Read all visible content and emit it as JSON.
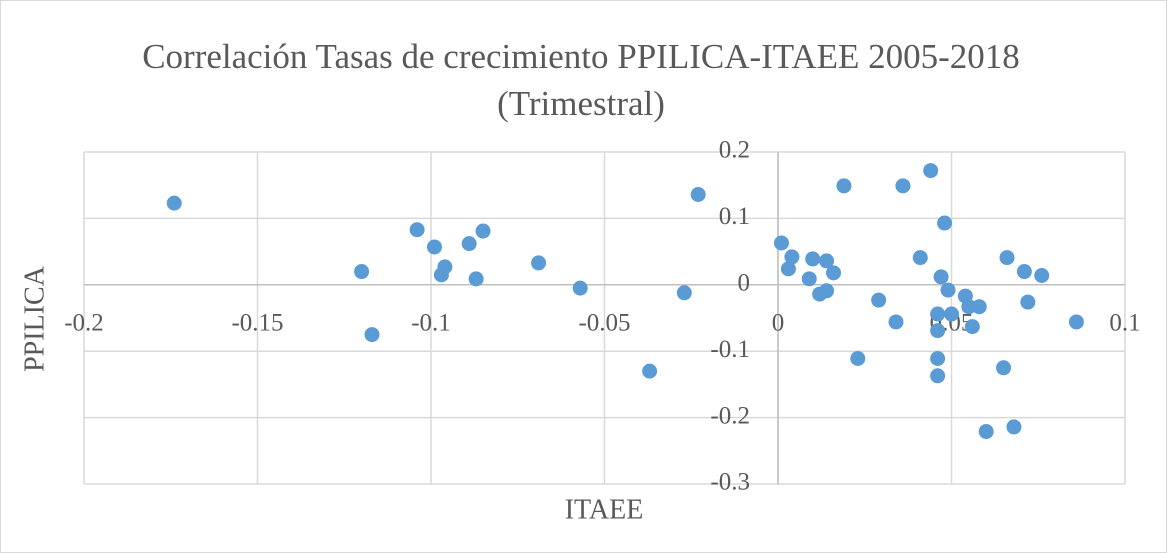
{
  "chart_data": {
    "type": "scatter",
    "title": "Correlación Tasas de crecimiento PPILICA-ITAEE 2005-2018 (Trimestral)",
    "x_label": "ITAEE",
    "y_label": "PPILICA",
    "color": "#5b9bd5",
    "grid": true,
    "xlim": [
      -0.2,
      0.1
    ],
    "xticks": [
      -0.2,
      -0.15,
      -0.1,
      -0.05,
      0,
      0.05,
      0.1
    ],
    "ylim": [
      -0.3,
      0.2
    ],
    "yticks": [
      0.2,
      0.1,
      0,
      -0.1,
      -0.2,
      -0.3
    ],
    "x": [
      -0.174,
      -0.12,
      -0.117,
      -0.104,
      -0.099,
      -0.097,
      -0.096,
      -0.089,
      -0.087,
      -0.085,
      -0.069,
      -0.057,
      -0.037,
      -0.027,
      -0.023,
      0.001,
      0.003,
      0.004,
      0.01,
      0.009,
      0.012,
      0.014,
      0.014,
      0.016,
      0.019,
      0.023,
      0.029,
      0.034,
      0.036,
      0.041,
      0.044,
      0.046,
      0.046,
      0.046,
      0.046,
      0.047,
      0.048,
      0.049,
      0.05,
      0.054,
      0.055,
      0.056,
      0.058,
      0.06,
      0.065,
      0.066,
      0.068,
      0.071,
      0.072,
      0.076,
      0.086
    ],
    "values": [
      0.123,
      0.02,
      -0.075,
      0.083,
      0.057,
      0.015,
      0.027,
      0.062,
      0.009,
      0.081,
      0.033,
      -0.005,
      -0.13,
      -0.012,
      0.136,
      0.063,
      0.024,
      0.042,
      0.039,
      0.009,
      -0.014,
      0.036,
      -0.009,
      0.018,
      0.149,
      -0.111,
      -0.023,
      -0.056,
      0.149,
      0.041,
      0.172,
      -0.044,
      -0.111,
      -0.137,
      -0.069,
      0.012,
      0.093,
      -0.008,
      -0.044,
      -0.017,
      -0.033,
      -0.063,
      -0.033,
      -0.221,
      -0.125,
      0.041,
      -0.214,
      0.02,
      -0.026,
      0.014,
      -0.056
    ]
  }
}
